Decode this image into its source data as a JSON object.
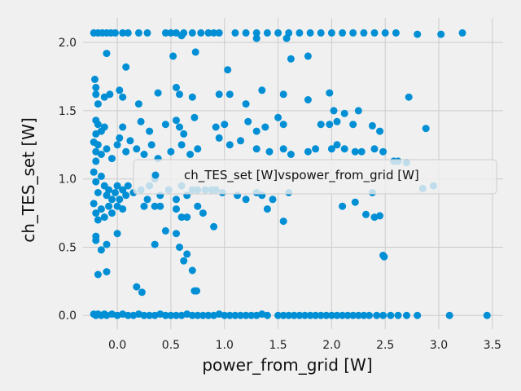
{
  "chart_data": {
    "type": "scatter",
    "xlabel": "power_from_grid [W]",
    "ylabel": "ch_TES_set [W]",
    "xlim": [
      -0.32,
      3.6
    ],
    "ylim": [
      -0.1,
      2.18
    ],
    "xticks": [
      "0.0",
      "0.5",
      "1.0",
      "1.5",
      "2.0",
      "2.5",
      "3.0",
      "3.5"
    ],
    "yticks": [
      "0.0",
      "0.5",
      "1.0",
      "1.5",
      "2.0"
    ],
    "grid": true,
    "legend_position": "center-right",
    "marker_color": "#008fd5",
    "series": [
      {
        "name": "ch_TES_set [W]vspower_from_grid [W]",
        "points": [
          [
            -0.22,
            2.07
          ],
          [
            -0.18,
            2.07
          ],
          [
            -0.14,
            2.07
          ],
          [
            -0.1,
            2.07
          ],
          [
            -0.06,
            2.07
          ],
          [
            -0.02,
            2.07
          ],
          [
            0.05,
            2.07
          ],
          [
            0.1,
            2.07
          ],
          [
            0.2,
            2.07
          ],
          [
            0.28,
            2.07
          ],
          [
            0.45,
            2.07
          ],
          [
            0.5,
            2.07
          ],
          [
            0.55,
            2.07
          ],
          [
            0.62,
            2.07
          ],
          [
            0.7,
            2.07
          ],
          [
            0.78,
            2.07
          ],
          [
            0.85,
            2.07
          ],
          [
            0.9,
            2.07
          ],
          [
            0.95,
            2.07
          ],
          [
            1.1,
            2.07
          ],
          [
            1.2,
            2.07
          ],
          [
            1.3,
            2.07
          ],
          [
            1.4,
            2.07
          ],
          [
            1.5,
            2.07
          ],
          [
            1.6,
            2.07
          ],
          [
            1.7,
            2.07
          ],
          [
            1.8,
            2.07
          ],
          [
            1.9,
            2.07
          ],
          [
            2.0,
            2.07
          ],
          [
            2.1,
            2.07
          ],
          [
            2.2,
            2.07
          ],
          [
            2.3,
            2.07
          ],
          [
            2.4,
            2.07
          ],
          [
            2.5,
            2.07
          ],
          [
            2.6,
            2.07
          ],
          [
            2.8,
            2.06
          ],
          [
            3.02,
            2.06
          ],
          [
            3.22,
            2.07
          ],
          [
            -0.1,
            1.92
          ],
          [
            0.6,
            2.05
          ],
          [
            1.3,
            2.03
          ],
          [
            1.58,
            2.03
          ],
          [
            0.08,
            1.82
          ],
          [
            0.52,
            1.9
          ],
          [
            0.73,
            1.93
          ],
          [
            1.03,
            1.8
          ],
          [
            1.62,
            1.88
          ],
          [
            1.78,
            1.9
          ],
          [
            -0.21,
            1.73
          ],
          [
            -0.2,
            1.67
          ],
          [
            -0.2,
            1.62
          ],
          [
            -0.18,
            1.55
          ],
          [
            -0.12,
            1.6
          ],
          [
            -0.07,
            1.62
          ],
          [
            0.02,
            1.65
          ],
          [
            0.05,
            1.6
          ],
          [
            0.2,
            1.55
          ],
          [
            0.38,
            1.63
          ],
          [
            0.55,
            1.67
          ],
          [
            0.58,
            1.62
          ],
          [
            0.7,
            1.6
          ],
          [
            0.95,
            1.62
          ],
          [
            1.05,
            1.62
          ],
          [
            1.2,
            1.55
          ],
          [
            1.35,
            1.65
          ],
          [
            1.55,
            1.62
          ],
          [
            1.78,
            1.58
          ],
          [
            1.98,
            1.63
          ],
          [
            2.02,
            1.5
          ],
          [
            2.12,
            1.48
          ],
          [
            2.25,
            1.5
          ],
          [
            2.72,
            1.6
          ],
          [
            -0.2,
            1.43
          ],
          [
            -0.18,
            1.4
          ],
          [
            -0.2,
            1.33
          ],
          [
            -0.15,
            1.35
          ],
          [
            -0.12,
            1.38
          ],
          [
            0.02,
            1.3
          ],
          [
            0.05,
            1.38
          ],
          [
            0.22,
            1.42
          ],
          [
            0.3,
            1.35
          ],
          [
            0.45,
            1.4
          ],
          [
            0.55,
            1.43
          ],
          [
            0.58,
            1.38
          ],
          [
            0.62,
            1.33
          ],
          [
            0.72,
            1.45
          ],
          [
            0.92,
            1.38
          ],
          [
            1.0,
            1.4
          ],
          [
            1.22,
            1.42
          ],
          [
            1.3,
            1.35
          ],
          [
            1.38,
            1.38
          ],
          [
            1.5,
            1.45
          ],
          [
            1.55,
            1.4
          ],
          [
            1.9,
            1.4
          ],
          [
            1.98,
            1.4
          ],
          [
            2.05,
            1.42
          ],
          [
            2.2,
            1.4
          ],
          [
            2.38,
            1.39
          ],
          [
            2.45,
            1.35
          ],
          [
            2.88,
            1.37
          ],
          [
            -0.22,
            1.27
          ],
          [
            -0.2,
            1.2
          ],
          [
            -0.2,
            1.13
          ],
          [
            -0.18,
            1.25
          ],
          [
            -0.15,
            1.18
          ],
          [
            -0.1,
            1.22
          ],
          [
            -0.05,
            1.15
          ],
          [
            0.0,
            1.25
          ],
          [
            0.08,
            1.2
          ],
          [
            0.12,
            1.28
          ],
          [
            0.18,
            1.22
          ],
          [
            0.25,
            1.18
          ],
          [
            0.32,
            1.25
          ],
          [
            0.38,
            1.15
          ],
          [
            0.5,
            1.2
          ],
          [
            0.6,
            1.25
          ],
          [
            0.68,
            1.18
          ],
          [
            0.75,
            1.22
          ],
          [
            0.95,
            1.3
          ],
          [
            1.05,
            1.25
          ],
          [
            1.15,
            1.28
          ],
          [
            1.3,
            1.22
          ],
          [
            1.42,
            1.2
          ],
          [
            1.55,
            1.22
          ],
          [
            1.62,
            1.18
          ],
          [
            1.78,
            1.2
          ],
          [
            1.85,
            1.22
          ],
          [
            2.0,
            1.22
          ],
          [
            2.05,
            1.25
          ],
          [
            2.12,
            1.22
          ],
          [
            2.22,
            1.2
          ],
          [
            2.28,
            1.2
          ],
          [
            2.4,
            1.22
          ],
          [
            2.48,
            1.2
          ],
          [
            2.58,
            1.13
          ],
          [
            2.62,
            1.13
          ],
          [
            2.7,
            1.12
          ],
          [
            -0.22,
            1.05
          ],
          [
            -0.2,
            0.98
          ],
          [
            -0.18,
            0.9
          ],
          [
            -0.15,
            1.02
          ],
          [
            -0.12,
            0.95
          ],
          [
            -0.1,
            0.88
          ],
          [
            -0.08,
            0.92
          ],
          [
            -0.05,
            0.85
          ],
          [
            -0.02,
            0.9
          ],
          [
            0.0,
            0.95
          ],
          [
            0.02,
            0.85
          ],
          [
            0.05,
            0.92
          ],
          [
            0.08,
            0.88
          ],
          [
            0.1,
            0.95
          ],
          [
            0.15,
            0.9
          ],
          [
            0.22,
            0.92
          ],
          [
            0.28,
            0.85
          ],
          [
            0.3,
            0.95
          ],
          [
            0.35,
            1.0
          ],
          [
            0.4,
            0.88
          ],
          [
            0.48,
            0.92
          ],
          [
            0.55,
            0.85
          ],
          [
            0.6,
            0.95
          ],
          [
            0.65,
            0.88
          ],
          [
            0.7,
            0.92
          ],
          [
            0.75,
            0.92
          ],
          [
            0.82,
            0.92
          ],
          [
            0.88,
            0.92
          ],
          [
            0.92,
            0.92
          ],
          [
            0.98,
            0.9
          ],
          [
            1.12,
            0.88
          ],
          [
            1.2,
            0.85
          ],
          [
            1.3,
            0.9
          ],
          [
            1.35,
            0.88
          ],
          [
            1.45,
            0.85
          ],
          [
            1.6,
            0.9
          ],
          [
            2.38,
            0.9
          ],
          [
            2.85,
            0.93
          ],
          [
            2.95,
            0.95
          ],
          [
            -0.22,
            0.82
          ],
          [
            -0.2,
            0.75
          ],
          [
            -0.18,
            0.7
          ],
          [
            -0.15,
            0.78
          ],
          [
            -0.12,
            0.72
          ],
          [
            -0.08,
            0.8
          ],
          [
            -0.05,
            0.75
          ],
          [
            0.0,
            0.8
          ],
          [
            0.05,
            0.78
          ],
          [
            0.25,
            0.8
          ],
          [
            0.35,
            0.8
          ],
          [
            0.4,
            0.8
          ],
          [
            0.55,
            0.78
          ],
          [
            0.6,
            0.72
          ],
          [
            0.65,
            0.72
          ],
          [
            0.75,
            0.8
          ],
          [
            0.8,
            0.75
          ],
          [
            0.9,
            0.65
          ],
          [
            1.4,
            0.78
          ],
          [
            1.55,
            0.69
          ],
          [
            2.1,
            0.8
          ],
          [
            2.22,
            0.83
          ],
          [
            2.32,
            0.74
          ],
          [
            2.4,
            0.72
          ],
          [
            2.45,
            0.73
          ],
          [
            -0.2,
            0.58
          ],
          [
            -0.2,
            0.55
          ],
          [
            -0.15,
            0.48
          ],
          [
            -0.1,
            0.52
          ],
          [
            0.0,
            0.6
          ],
          [
            0.35,
            0.52
          ],
          [
            0.45,
            0.62
          ],
          [
            0.55,
            0.6
          ],
          [
            0.58,
            0.5
          ],
          [
            0.62,
            0.4
          ],
          [
            0.65,
            0.45
          ],
          [
            2.48,
            0.44
          ],
          [
            2.49,
            0.43
          ],
          [
            -0.18,
            0.3
          ],
          [
            -0.1,
            0.32
          ],
          [
            0.7,
            0.33
          ],
          [
            0.72,
            0.18
          ],
          [
            0.74,
            0.18
          ],
          [
            0.18,
            0.21
          ],
          [
            0.23,
            0.17
          ],
          [
            -0.22,
            0.01
          ],
          [
            -0.2,
            0.0
          ],
          [
            -0.18,
            0.01
          ],
          [
            -0.15,
            0.0
          ],
          [
            -0.12,
            0.01
          ],
          [
            -0.1,
            0.0
          ],
          [
            -0.05,
            0.01
          ],
          [
            0.0,
            0.0
          ],
          [
            0.05,
            0.01
          ],
          [
            0.1,
            0.0
          ],
          [
            0.15,
            0.0
          ],
          [
            0.2,
            0.01
          ],
          [
            0.25,
            0.0
          ],
          [
            0.3,
            0.0
          ],
          [
            0.35,
            0.0
          ],
          [
            0.4,
            0.01
          ],
          [
            0.45,
            0.0
          ],
          [
            0.5,
            0.0
          ],
          [
            0.55,
            0.0
          ],
          [
            0.6,
            0.0
          ],
          [
            0.65,
            0.01
          ],
          [
            0.7,
            0.0
          ],
          [
            0.75,
            0.0
          ],
          [
            0.8,
            0.0
          ],
          [
            0.85,
            0.0
          ],
          [
            0.9,
            0.0
          ],
          [
            0.95,
            0.01
          ],
          [
            1.0,
            0.0
          ],
          [
            1.05,
            0.0
          ],
          [
            1.1,
            0.0
          ],
          [
            1.15,
            0.0
          ],
          [
            1.2,
            0.0
          ],
          [
            1.25,
            0.0
          ],
          [
            1.3,
            0.0
          ],
          [
            1.35,
            0.01
          ],
          [
            1.4,
            0.0
          ],
          [
            1.5,
            0.0
          ],
          [
            1.55,
            0.0
          ],
          [
            1.6,
            0.0
          ],
          [
            1.65,
            0.0
          ],
          [
            1.7,
            0.0
          ],
          [
            1.75,
            0.0
          ],
          [
            1.8,
            0.0
          ],
          [
            1.85,
            0.0
          ],
          [
            1.9,
            0.0
          ],
          [
            1.95,
            0.0
          ],
          [
            2.0,
            0.0
          ],
          [
            2.05,
            0.0
          ],
          [
            2.1,
            0.0
          ],
          [
            2.15,
            0.0
          ],
          [
            2.2,
            0.0
          ],
          [
            2.25,
            0.0
          ],
          [
            2.3,
            0.0
          ],
          [
            2.35,
            0.0
          ],
          [
            2.42,
            0.0
          ],
          [
            2.48,
            0.0
          ],
          [
            2.55,
            0.0
          ],
          [
            2.62,
            0.0
          ],
          [
            2.7,
            0.0
          ],
          [
            2.8,
            0.0
          ],
          [
            3.1,
            0.0
          ],
          [
            3.45,
            0.0
          ]
        ]
      }
    ]
  }
}
